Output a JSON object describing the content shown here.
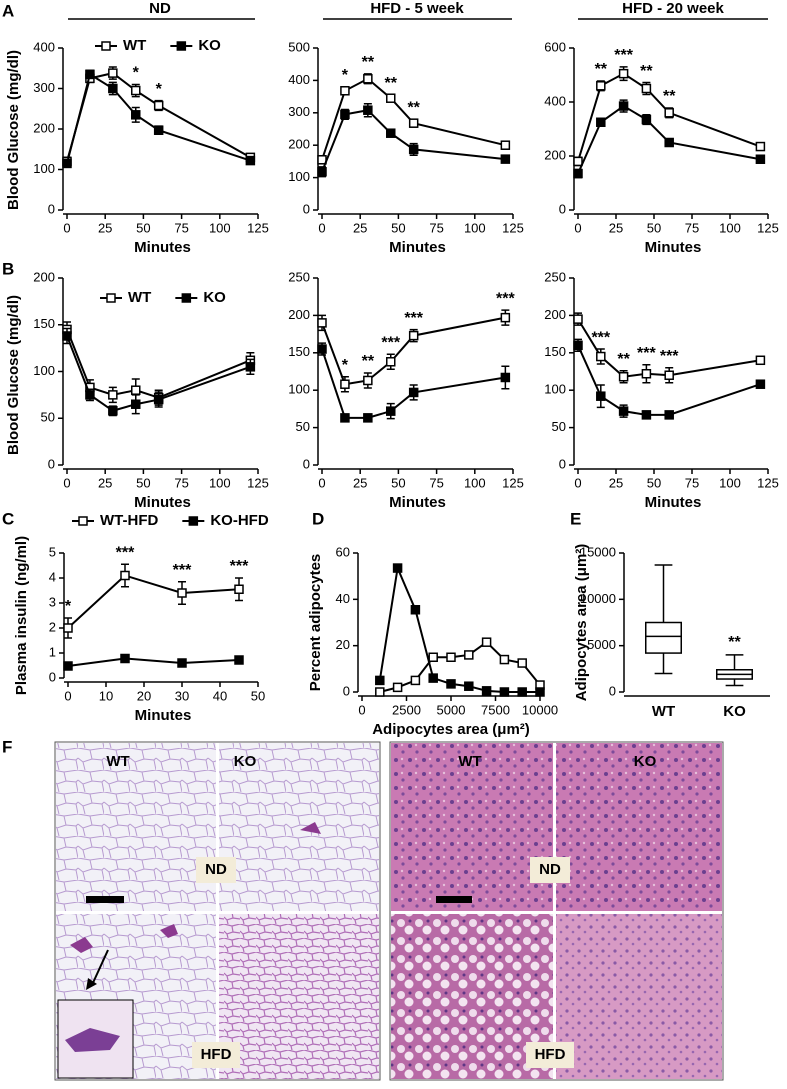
{
  "figure": {
    "panel_labels": [
      "A",
      "B",
      "C",
      "D",
      "E",
      "F"
    ],
    "column_titles": [
      "ND",
      "HFD - 5 week",
      "HFD - 20 week"
    ]
  },
  "chart_data": [
    {
      "type": "line",
      "ylabel": "Blood Glucose (mg/dl)",
      "xlabel": "Minutes",
      "x": [
        0,
        15,
        30,
        45,
        60,
        120
      ],
      "xlim": [
        0,
        125
      ],
      "xticks": [
        0,
        25,
        50,
        75,
        100,
        125
      ],
      "ylim": [
        0,
        400
      ],
      "yticks": [
        0,
        100,
        200,
        300,
        400
      ],
      "legend": "top",
      "series": [
        {
          "name": "WT",
          "color": "#000000",
          "fill": "#ffffff",
          "values": [
            120,
            325,
            338,
            295,
            258,
            130
          ],
          "errors": [
            10,
            10,
            15,
            15,
            12,
            8
          ]
        },
        {
          "name": "KO",
          "color": "#000000",
          "fill": "#000000",
          "values": [
            115,
            335,
            300,
            235,
            197,
            122
          ],
          "errors": [
            8,
            10,
            15,
            18,
            10,
            8
          ]
        }
      ],
      "annotations": [
        {
          "text": "*",
          "x": 45
        },
        {
          "text": "*",
          "x": 60
        }
      ]
    },
    {
      "type": "line",
      "xlabel": "Minutes",
      "x": [
        0,
        15,
        30,
        45,
        60,
        120
      ],
      "xlim": [
        0,
        125
      ],
      "xticks": [
        0,
        25,
        50,
        75,
        100,
        125
      ],
      "ylim": [
        0,
        500
      ],
      "yticks": [
        0,
        100,
        200,
        300,
        400,
        500
      ],
      "series": [
        {
          "color": "#000000",
          "fill": "#ffffff",
          "values": [
            155,
            368,
            405,
            345,
            268,
            200
          ],
          "errors": [
            12,
            12,
            15,
            10,
            12,
            12
          ]
        },
        {
          "color": "#000000",
          "fill": "#000000",
          "values": [
            118,
            295,
            308,
            237,
            187,
            157
          ],
          "errors": [
            15,
            15,
            20,
            10,
            18,
            10
          ]
        }
      ],
      "annotations": [
        {
          "text": "*",
          "x": 15
        },
        {
          "text": "**",
          "x": 30
        },
        {
          "text": "**",
          "x": 45
        },
        {
          "text": "**",
          "x": 60
        }
      ]
    },
    {
      "type": "line",
      "xlabel": "Minutes",
      "x": [
        0,
        15,
        30,
        45,
        60,
        120
      ],
      "xlim": [
        0,
        125
      ],
      "xticks": [
        0,
        25,
        50,
        75,
        100,
        125
      ],
      "ylim": [
        0,
        600
      ],
      "yticks": [
        0,
        200,
        400,
        600
      ],
      "series": [
        {
          "color": "#000000",
          "fill": "#ffffff",
          "values": [
            180,
            460,
            505,
            450,
            360,
            235
          ],
          "errors": [
            15,
            18,
            25,
            22,
            18,
            12
          ]
        },
        {
          "color": "#000000",
          "fill": "#000000",
          "values": [
            135,
            325,
            385,
            335,
            250,
            188
          ],
          "errors": [
            15,
            12,
            22,
            18,
            10,
            8
          ]
        }
      ],
      "annotations": [
        {
          "text": "**",
          "x": 15
        },
        {
          "text": "***",
          "x": 30
        },
        {
          "text": "**",
          "x": 45
        },
        {
          "text": "**",
          "x": 60
        }
      ]
    },
    {
      "type": "line",
      "ylabel": "Blood Glucose (mg/dl)",
      "xlabel": "Minutes",
      "x": [
        0,
        15,
        30,
        45,
        60,
        120
      ],
      "xlim": [
        0,
        125
      ],
      "xticks": [
        0,
        25,
        50,
        75,
        100,
        125
      ],
      "ylim": [
        0,
        200
      ],
      "yticks": [
        0,
        50,
        100,
        150,
        200
      ],
      "legend": "top",
      "series": [
        {
          "name": "WT",
          "color": "#000000",
          "fill": "#ffffff",
          "values": [
            145,
            83,
            75,
            80,
            72,
            112
          ],
          "errors": [
            8,
            8,
            8,
            12,
            8,
            8
          ]
        },
        {
          "name": "KO",
          "color": "#000000",
          "fill": "#000000",
          "values": [
            138,
            75,
            58,
            65,
            70,
            105
          ],
          "errors": [
            8,
            6,
            5,
            10,
            8,
            8
          ]
        }
      ],
      "annotations": []
    },
    {
      "type": "line",
      "xlabel": "Minutes",
      "x": [
        0,
        15,
        30,
        45,
        60,
        120
      ],
      "xlim": [
        0,
        125
      ],
      "xticks": [
        0,
        25,
        50,
        75,
        100,
        125
      ],
      "ylim": [
        0,
        250
      ],
      "yticks": [
        0,
        50,
        100,
        150,
        200,
        250
      ],
      "series": [
        {
          "color": "#000000",
          "fill": "#ffffff",
          "values": [
            190,
            108,
            113,
            138,
            173,
            197
          ],
          "errors": [
            10,
            10,
            10,
            10,
            8,
            10
          ]
        },
        {
          "color": "#000000",
          "fill": "#000000",
          "values": [
            155,
            63,
            63,
            72,
            97,
            117
          ],
          "errors": [
            8,
            3,
            5,
            10,
            10,
            15
          ]
        }
      ],
      "annotations": [
        {
          "text": "*",
          "x": 15
        },
        {
          "text": "**",
          "x": 30
        },
        {
          "text": "***",
          "x": 45
        },
        {
          "text": "***",
          "x": 60
        },
        {
          "text": "***",
          "x": 120
        }
      ]
    },
    {
      "type": "line",
      "xlabel": "Minutes",
      "x": [
        0,
        15,
        30,
        45,
        60,
        120
      ],
      "xlim": [
        0,
        125
      ],
      "xticks": [
        0,
        25,
        50,
        75,
        100,
        125
      ],
      "ylim": [
        0,
        250
      ],
      "yticks": [
        0,
        50,
        100,
        150,
        200,
        250
      ],
      "series": [
        {
          "color": "#000000",
          "fill": "#ffffff",
          "values": [
            195,
            145,
            118,
            122,
            120,
            140
          ],
          "errors": [
            8,
            10,
            8,
            12,
            10,
            5
          ]
        },
        {
          "color": "#000000",
          "fill": "#000000",
          "values": [
            160,
            92,
            72,
            67,
            67,
            108
          ],
          "errors": [
            8,
            15,
            8,
            5,
            3,
            3
          ]
        }
      ],
      "annotations": [
        {
          "text": "***",
          "x": 15
        },
        {
          "text": "**",
          "x": 30
        },
        {
          "text": "***",
          "x": 45
        },
        {
          "text": "***",
          "x": 60
        }
      ]
    },
    {
      "type": "line",
      "ylabel": "Plasma insulin (ng/ml)",
      "xlabel": "Minutes",
      "x": [
        0,
        15,
        30,
        45
      ],
      "xlim": [
        0,
        50
      ],
      "xticks": [
        0,
        10,
        20,
        30,
        40,
        50
      ],
      "ylim": [
        0,
        5
      ],
      "yticks": [
        0,
        1,
        2,
        3,
        4,
        5
      ],
      "legend": "top",
      "series": [
        {
          "name": "WT-HFD",
          "color": "#000000",
          "fill": "#ffffff",
          "values": [
            2.0,
            4.1,
            3.4,
            3.55
          ],
          "errors": [
            0.4,
            0.45,
            0.45,
            0.45
          ]
        },
        {
          "name": "KO-HFD",
          "color": "#000000",
          "fill": "#000000",
          "values": [
            0.48,
            0.78,
            0.6,
            0.72
          ],
          "errors": [
            0.05,
            0.1,
            0.05,
            0.1
          ]
        }
      ],
      "annotations": [
        {
          "text": "*",
          "x": 0
        },
        {
          "text": "***",
          "x": 15
        },
        {
          "text": "***",
          "x": 30
        },
        {
          "text": "***",
          "x": 45
        }
      ]
    },
    {
      "type": "line",
      "ylabel": "Percent adipocytes",
      "xlabel": "Adipocytes area (μm²)",
      "x": [
        1000,
        2000,
        3000,
        4000,
        5000,
        6000,
        7000,
        8000,
        9000,
        10000
      ],
      "xlim": [
        0,
        10000
      ],
      "xticks": [
        0,
        2500,
        5000,
        7500,
        10000
      ],
      "ylim": [
        0,
        60
      ],
      "yticks": [
        0,
        20,
        40,
        60
      ],
      "series": [
        {
          "color": "#000000",
          "fill": "#ffffff",
          "values": [
            0,
            2,
            5,
            15,
            15,
            16,
            21.5,
            14,
            12.5,
            3
          ]
        },
        {
          "color": "#000000",
          "fill": "#000000",
          "values": [
            5,
            53.5,
            35.5,
            6,
            3.5,
            2.5,
            0.5,
            0,
            0,
            0
          ]
        }
      ],
      "annotations": []
    },
    {
      "type": "box",
      "ylabel": "Adipocytes area (μm²)",
      "categories": [
        "WT",
        "KO"
      ],
      "ylim": [
        0,
        15000
      ],
      "yticks": [
        0,
        5000,
        10000,
        15000
      ],
      "boxes": [
        {
          "min": 2000,
          "q1": 4200,
          "median": 6000,
          "q3": 7500,
          "max": 13700
        },
        {
          "min": 700,
          "q1": 1400,
          "median": 1900,
          "q3": 2400,
          "max": 4000
        }
      ],
      "annotations": [
        {
          "text": "**"
        }
      ]
    }
  ],
  "histology": {
    "blocks": [
      {
        "columns": [
          "WT",
          "KO"
        ],
        "rows": [
          "ND",
          "HFD"
        ]
      },
      {
        "columns": [
          "WT",
          "KO"
        ],
        "rows": [
          "ND",
          "HFD"
        ]
      }
    ]
  }
}
